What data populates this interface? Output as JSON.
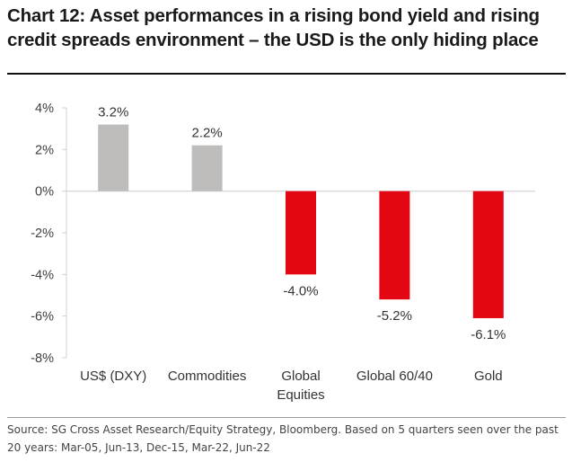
{
  "chart_data": {
    "type": "bar",
    "title": "Chart 12: Asset performances in a rising bond yield and rising credit spreads environment – the USD is the only hiding place",
    "categories": [
      [
        "US$ (DXY)"
      ],
      [
        "Commodities"
      ],
      [
        "Global",
        "Equities"
      ],
      [
        "Global 60/40"
      ],
      [
        "Gold"
      ]
    ],
    "values": [
      3.2,
      2.2,
      -4.0,
      -5.2,
      -6.1
    ],
    "data_labels": [
      "3.2%",
      "2.2%",
      "-4.0%",
      "-5.2%",
      "-6.1%"
    ],
    "bar_colors": [
      "#bfbcbc",
      "#bfbcbc",
      "#e30613",
      "#e30613",
      "#e30613"
    ],
    "y_ticks": [
      4,
      2,
      0,
      -2,
      -4,
      -6,
      -8
    ],
    "y_tick_labels": [
      "4%",
      "2%",
      "0%",
      "-2%",
      "-4%",
      "-6%",
      "-8%"
    ],
    "ylim": [
      -8,
      4
    ],
    "xlabel": "",
    "ylabel": "",
    "grid": false,
    "axis_color": "#d0d0d0"
  },
  "source": "Source: SG Cross Asset Research/Equity Strategy, Bloomberg. Based on 5 quarters seen over the past 20 years: Mar-05, Jun-13, Dec-15, Mar-22, Jun-22"
}
